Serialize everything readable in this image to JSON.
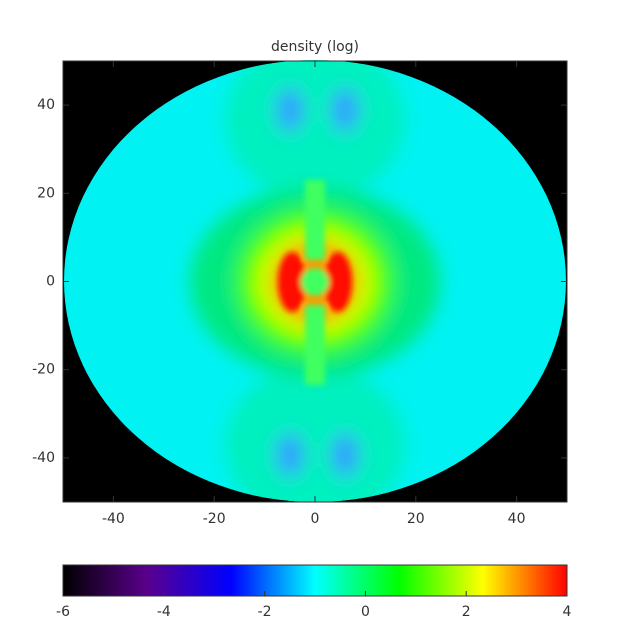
{
  "chart_data": {
    "type": "heatmap",
    "title": "density (log)",
    "xlim": [
      -50,
      50
    ],
    "ylim": [
      -50,
      50
    ],
    "xticks": [
      -40,
      -20,
      0,
      20,
      40
    ],
    "yticks": [
      -40,
      -20,
      0,
      20,
      40
    ],
    "colorbar": {
      "lim": [
        -6,
        4
      ],
      "ticks": [
        -6,
        -4,
        -2,
        0,
        2,
        4
      ],
      "colormap": [
        "#000000",
        "#5a008c",
        "#0000ff",
        "#00ffff",
        "#00ff00",
        "#ffff00",
        "#ff0000"
      ]
    }
  }
}
